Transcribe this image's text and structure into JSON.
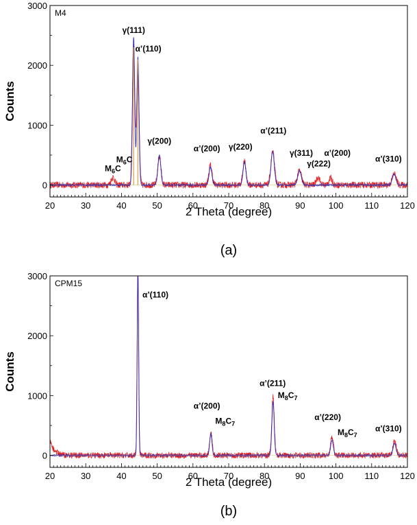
{
  "chart_data": [
    {
      "type": "line",
      "panel_label": "(a)",
      "sample_label": "M4",
      "xlabel": "2 Theta (degree)",
      "ylabel": "Counts",
      "xlim": [
        20,
        120
      ],
      "ylim": [
        -200,
        3000
      ],
      "xticks": [
        20,
        30,
        40,
        50,
        60,
        70,
        80,
        90,
        100,
        110,
        120
      ],
      "yticks": [
        0,
        1000,
        2000,
        3000
      ],
      "grid": false,
      "series": [
        {
          "color": "#e01010",
          "baseline": 0,
          "noise": 55,
          "peaks": [
            {
              "x": 37.6,
              "y": 130,
              "w": 0.5
            },
            {
              "x": 43.4,
              "y": 2350,
              "w": 0.35
            },
            {
              "x": 44.6,
              "y": 1900,
              "w": 0.35
            },
            {
              "x": 50.6,
              "y": 480,
              "w": 0.45
            },
            {
              "x": 64.9,
              "y": 330,
              "w": 0.45
            },
            {
              "x": 74.4,
              "y": 390,
              "w": 0.45
            },
            {
              "x": 82.3,
              "y": 560,
              "w": 0.5
            },
            {
              "x": 89.8,
              "y": 240,
              "w": 0.55
            },
            {
              "x": 95.0,
              "y": 130,
              "w": 0.5
            },
            {
              "x": 98.5,
              "y": 110,
              "w": 0.5
            },
            {
              "x": 116.3,
              "y": 190,
              "w": 0.55
            }
          ]
        },
        {
          "color": "#2020c0",
          "baseline": 0,
          "noise": 12,
          "peaks": [
            {
              "x": 43.4,
              "y": 2470,
              "w": 0.3
            },
            {
              "x": 44.6,
              "y": 2150,
              "w": 0.3
            },
            {
              "x": 50.6,
              "y": 500,
              "w": 0.4
            },
            {
              "x": 64.9,
              "y": 300,
              "w": 0.4
            },
            {
              "x": 74.4,
              "y": 380,
              "w": 0.4
            },
            {
              "x": 82.3,
              "y": 560,
              "w": 0.45
            },
            {
              "x": 89.8,
              "y": 230,
              "w": 0.5
            },
            {
              "x": 116.3,
              "y": 180,
              "w": 0.5
            }
          ]
        }
      ],
      "reference_lines": [
        {
          "color": "#d8a040",
          "x": 43.4,
          "y": 2300
        },
        {
          "color": "#d8a040",
          "x": 44.6,
          "y": 2100
        }
      ],
      "annotations": [
        {
          "text": "M",
          "sub": "6",
          "tail": "C",
          "x": 37.6,
          "y": 230
        },
        {
          "text": "M",
          "sub": "6",
          "tail": "C",
          "x": 40.8,
          "y": 380
        },
        {
          "text": "γ(111)",
          "sub": "",
          "tail": "",
          "x": 43.4,
          "y": 2540
        },
        {
          "text": "α’(110)",
          "sub": "",
          "tail": "",
          "x": 47.5,
          "y": 2230
        },
        {
          "text": "γ(200)",
          "sub": "",
          "tail": "",
          "x": 50.6,
          "y": 690
        },
        {
          "text": "α’(200)",
          "sub": "",
          "tail": "",
          "x": 63.9,
          "y": 560
        },
        {
          "text": "γ(220)",
          "sub": "",
          "tail": "",
          "x": 73.3,
          "y": 590
        },
        {
          "text": "α’(211)",
          "sub": "",
          "tail": "",
          "x": 82.5,
          "y": 860
        },
        {
          "text": "γ(311)",
          "sub": "",
          "tail": "",
          "x": 90.3,
          "y": 490
        },
        {
          "text": "γ(222)",
          "sub": "",
          "tail": "",
          "x": 95.2,
          "y": 310
        },
        {
          "text": "α’(200)",
          "sub": "",
          "tail": "",
          "x": 100.4,
          "y": 490
        },
        {
          "text": "α’(310)",
          "sub": "",
          "tail": "",
          "x": 114.7,
          "y": 390
        }
      ]
    },
    {
      "type": "line",
      "panel_label": "(b)",
      "sample_label": "CPM15",
      "xlabel": "2 Theta (degree)",
      "ylabel": "Counts",
      "xlim": [
        20,
        120
      ],
      "ylim": [
        -200,
        3000
      ],
      "xticks": [
        20,
        30,
        40,
        50,
        60,
        70,
        80,
        90,
        100,
        110,
        120
      ],
      "yticks": [
        0,
        1000,
        2000,
        3000
      ],
      "grid": false,
      "series": [
        {
          "color": "#e01010",
          "baseline": 0,
          "noise": 50,
          "start_hump": 240,
          "peaks": [
            {
              "x": 44.6,
              "y": 3100,
              "w": 0.22
            },
            {
              "x": 65.0,
              "y": 380,
              "w": 0.35
            },
            {
              "x": 82.4,
              "y": 980,
              "w": 0.35
            },
            {
              "x": 98.9,
              "y": 300,
              "w": 0.4
            },
            {
              "x": 116.4,
              "y": 240,
              "w": 0.45
            }
          ]
        },
        {
          "color": "#2020c0",
          "baseline": 0,
          "noise": 10,
          "start_hump": 0,
          "peaks": [
            {
              "x": 44.6,
              "y": 3100,
              "w": 0.2
            },
            {
              "x": 65.0,
              "y": 360,
              "w": 0.32
            },
            {
              "x": 82.4,
              "y": 900,
              "w": 0.32
            },
            {
              "x": 98.9,
              "y": 250,
              "w": 0.38
            },
            {
              "x": 116.4,
              "y": 200,
              "w": 0.42
            }
          ]
        }
      ],
      "reference_lines": [],
      "annotations": [
        {
          "text": "α’(110)",
          "sub": "",
          "tail": "",
          "x": 49.5,
          "y": 2640
        },
        {
          "text": "α’(200)",
          "sub": "",
          "tail": "",
          "x": 63.9,
          "y": 780
        },
        {
          "text": "M",
          "sub": "8",
          "tail": "C",
          "tailsub": "7",
          "x": 69.0,
          "y": 530
        },
        {
          "text": "α’(211)",
          "sub": "",
          "tail": "",
          "x": 82.3,
          "y": 1160
        },
        {
          "text": "M",
          "sub": "8",
          "tail": "C",
          "tailsub": "7",
          "x": 86.5,
          "y": 960
        },
        {
          "text": "α’(220)",
          "sub": "",
          "tail": "",
          "x": 97.7,
          "y": 590
        },
        {
          "text": "M",
          "sub": "8",
          "tail": "C",
          "tailsub": "7",
          "x": 103.2,
          "y": 340
        },
        {
          "text": "α’(310)",
          "sub": "",
          "tail": "",
          "x": 114.7,
          "y": 400
        }
      ]
    }
  ]
}
